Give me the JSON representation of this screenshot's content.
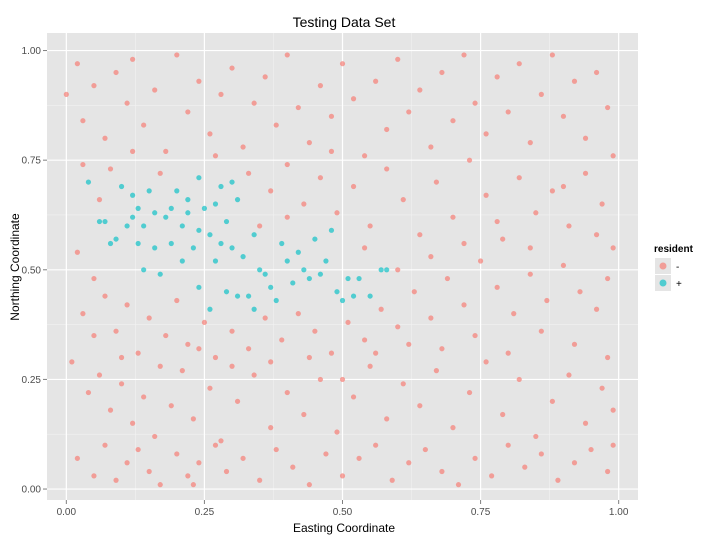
{
  "chart_data": {
    "type": "scatter",
    "title": "Testing Data Set",
    "xlabel": "Easting Coordinate",
    "ylabel": "Northing Coordinate",
    "xlim": [
      -0.035,
      1.035
    ],
    "ylim": [
      -0.025,
      1.04
    ],
    "x_ticks": [
      0.0,
      0.25,
      0.5,
      0.75,
      1.0
    ],
    "x_tick_labels": [
      "0.00",
      "0.25",
      "0.50",
      "0.75",
      "1.00"
    ],
    "y_ticks": [
      0.0,
      0.25,
      0.5,
      0.75,
      1.0
    ],
    "y_tick_labels": [
      "0.00",
      "0.25",
      "0.50",
      "0.75",
      "1.00"
    ],
    "grid": true,
    "legend": {
      "title": "resident",
      "placement": "right",
      "entries": [
        {
          "label": "-",
          "color": "#F8766D"
        },
        {
          "label": "+",
          "color": "#00BFC4"
        }
      ]
    },
    "series": [
      {
        "name": "+",
        "color": "#00BFC4",
        "points": [
          [
            0.04,
            0.7
          ],
          [
            0.07,
            0.61
          ],
          [
            0.09,
            0.57
          ],
          [
            0.1,
            0.69
          ],
          [
            0.11,
            0.6
          ],
          [
            0.12,
            0.67
          ],
          [
            0.13,
            0.64
          ],
          [
            0.14,
            0.6
          ],
          [
            0.15,
            0.68
          ],
          [
            0.13,
            0.56
          ],
          [
            0.16,
            0.55
          ],
          [
            0.18,
            0.62
          ],
          [
            0.19,
            0.56
          ],
          [
            0.2,
            0.68
          ],
          [
            0.21,
            0.6
          ],
          [
            0.22,
            0.66
          ],
          [
            0.23,
            0.55
          ],
          [
            0.24,
            0.71
          ],
          [
            0.25,
            0.64
          ],
          [
            0.26,
            0.58
          ],
          [
            0.27,
            0.52
          ],
          [
            0.28,
            0.69
          ],
          [
            0.29,
            0.61
          ],
          [
            0.3,
            0.55
          ],
          [
            0.31,
            0.66
          ],
          [
            0.32,
            0.53
          ],
          [
            0.33,
            0.44
          ],
          [
            0.34,
            0.58
          ],
          [
            0.36,
            0.49
          ],
          [
            0.37,
            0.46
          ],
          [
            0.38,
            0.43
          ],
          [
            0.39,
            0.56
          ],
          [
            0.4,
            0.52
          ],
          [
            0.41,
            0.47
          ],
          [
            0.42,
            0.54
          ],
          [
            0.43,
            0.5
          ],
          [
            0.45,
            0.57
          ],
          [
            0.46,
            0.49
          ],
          [
            0.47,
            0.52
          ],
          [
            0.48,
            0.59
          ],
          [
            0.49,
            0.45
          ],
          [
            0.5,
            0.43
          ],
          [
            0.51,
            0.48
          ],
          [
            0.53,
            0.48
          ],
          [
            0.55,
            0.44
          ],
          [
            0.57,
            0.5
          ],
          [
            0.58,
            0.5
          ],
          [
            0.14,
            0.5
          ],
          [
            0.17,
            0.49
          ],
          [
            0.24,
            0.46
          ],
          [
            0.26,
            0.41
          ],
          [
            0.29,
            0.45
          ],
          [
            0.31,
            0.44
          ],
          [
            0.34,
            0.41
          ],
          [
            0.22,
            0.63
          ],
          [
            0.19,
            0.64
          ],
          [
            0.27,
            0.65
          ],
          [
            0.3,
            0.7
          ],
          [
            0.08,
            0.56
          ],
          [
            0.12,
            0.62
          ],
          [
            0.06,
            0.61
          ],
          [
            0.16,
            0.63
          ],
          [
            0.21,
            0.52
          ],
          [
            0.24,
            0.59
          ],
          [
            0.28,
            0.56
          ],
          [
            0.35,
            0.5
          ],
          [
            0.44,
            0.48
          ],
          [
            0.52,
            0.44
          ]
        ]
      },
      {
        "name": "-",
        "color": "#F8766D",
        "points": [
          [
            0.0,
            0.9
          ],
          [
            0.02,
            0.97
          ],
          [
            0.03,
            0.84
          ],
          [
            0.05,
            0.92
          ],
          [
            0.07,
            0.8
          ],
          [
            0.09,
            0.95
          ],
          [
            0.11,
            0.88
          ],
          [
            0.12,
            0.98
          ],
          [
            0.14,
            0.83
          ],
          [
            0.16,
            0.91
          ],
          [
            0.18,
            0.77
          ],
          [
            0.2,
            0.99
          ],
          [
            0.22,
            0.86
          ],
          [
            0.24,
            0.93
          ],
          [
            0.26,
            0.81
          ],
          [
            0.28,
            0.9
          ],
          [
            0.3,
            0.96
          ],
          [
            0.32,
            0.78
          ],
          [
            0.34,
            0.88
          ],
          [
            0.36,
            0.94
          ],
          [
            0.38,
            0.83
          ],
          [
            0.4,
            0.99
          ],
          [
            0.42,
            0.87
          ],
          [
            0.44,
            0.79
          ],
          [
            0.46,
            0.92
          ],
          [
            0.48,
            0.85
          ],
          [
            0.5,
            0.97
          ],
          [
            0.52,
            0.89
          ],
          [
            0.54,
            0.76
          ],
          [
            0.56,
            0.93
          ],
          [
            0.58,
            0.82
          ],
          [
            0.6,
            0.98
          ],
          [
            0.62,
            0.86
          ],
          [
            0.64,
            0.91
          ],
          [
            0.66,
            0.78
          ],
          [
            0.68,
            0.95
          ],
          [
            0.7,
            0.84
          ],
          [
            0.72,
            0.99
          ],
          [
            0.74,
            0.88
          ],
          [
            0.76,
            0.81
          ],
          [
            0.78,
            0.94
          ],
          [
            0.8,
            0.86
          ],
          [
            0.82,
            0.97
          ],
          [
            0.84,
            0.79
          ],
          [
            0.86,
            0.9
          ],
          [
            0.88,
            0.99
          ],
          [
            0.9,
            0.85
          ],
          [
            0.92,
            0.93
          ],
          [
            0.94,
            0.8
          ],
          [
            0.96,
            0.95
          ],
          [
            0.98,
            0.87
          ],
          [
            0.99,
            0.76
          ],
          [
            0.03,
            0.74
          ],
          [
            0.06,
            0.66
          ],
          [
            0.08,
            0.73
          ],
          [
            0.33,
            0.72
          ],
          [
            0.37,
            0.68
          ],
          [
            0.4,
            0.74
          ],
          [
            0.43,
            0.65
          ],
          [
            0.46,
            0.71
          ],
          [
            0.49,
            0.63
          ],
          [
            0.52,
            0.69
          ],
          [
            0.55,
            0.6
          ],
          [
            0.58,
            0.73
          ],
          [
            0.61,
            0.66
          ],
          [
            0.64,
            0.58
          ],
          [
            0.67,
            0.7
          ],
          [
            0.7,
            0.62
          ],
          [
            0.73,
            0.75
          ],
          [
            0.76,
            0.67
          ],
          [
            0.79,
            0.57
          ],
          [
            0.82,
            0.71
          ],
          [
            0.85,
            0.63
          ],
          [
            0.88,
            0.68
          ],
          [
            0.91,
            0.6
          ],
          [
            0.94,
            0.72
          ],
          [
            0.97,
            0.65
          ],
          [
            0.99,
            0.55
          ],
          [
            0.02,
            0.54
          ],
          [
            0.05,
            0.48
          ],
          [
            0.03,
            0.4
          ],
          [
            0.07,
            0.44
          ],
          [
            0.09,
            0.36
          ],
          [
            0.11,
            0.42
          ],
          [
            0.13,
            0.31
          ],
          [
            0.15,
            0.39
          ],
          [
            0.18,
            0.35
          ],
          [
            0.2,
            0.43
          ],
          [
            0.22,
            0.33
          ],
          [
            0.25,
            0.38
          ],
          [
            0.27,
            0.3
          ],
          [
            0.3,
            0.36
          ],
          [
            0.33,
            0.32
          ],
          [
            0.36,
            0.39
          ],
          [
            0.39,
            0.34
          ],
          [
            0.42,
            0.4
          ],
          [
            0.45,
            0.36
          ],
          [
            0.48,
            0.31
          ],
          [
            0.51,
            0.38
          ],
          [
            0.54,
            0.34
          ],
          [
            0.57,
            0.41
          ],
          [
            0.6,
            0.37
          ],
          [
            0.63,
            0.45
          ],
          [
            0.66,
            0.39
          ],
          [
            0.69,
            0.48
          ],
          [
            0.72,
            0.42
          ],
          [
            0.75,
            0.52
          ],
          [
            0.78,
            0.46
          ],
          [
            0.81,
            0.4
          ],
          [
            0.84,
            0.49
          ],
          [
            0.87,
            0.43
          ],
          [
            0.9,
            0.51
          ],
          [
            0.93,
            0.45
          ],
          [
            0.96,
            0.41
          ],
          [
            0.98,
            0.48
          ],
          [
            0.01,
            0.29
          ],
          [
            0.04,
            0.22
          ],
          [
            0.06,
            0.26
          ],
          [
            0.08,
            0.18
          ],
          [
            0.1,
            0.24
          ],
          [
            0.12,
            0.15
          ],
          [
            0.14,
            0.21
          ],
          [
            0.16,
            0.12
          ],
          [
            0.19,
            0.19
          ],
          [
            0.21,
            0.27
          ],
          [
            0.23,
            0.16
          ],
          [
            0.26,
            0.23
          ],
          [
            0.28,
            0.11
          ],
          [
            0.31,
            0.2
          ],
          [
            0.34,
            0.26
          ],
          [
            0.37,
            0.14
          ],
          [
            0.4,
            0.22
          ],
          [
            0.43,
            0.17
          ],
          [
            0.46,
            0.25
          ],
          [
            0.49,
            0.13
          ],
          [
            0.52,
            0.21
          ],
          [
            0.55,
            0.28
          ],
          [
            0.58,
            0.16
          ],
          [
            0.61,
            0.24
          ],
          [
            0.64,
            0.19
          ],
          [
            0.67,
            0.27
          ],
          [
            0.7,
            0.14
          ],
          [
            0.73,
            0.22
          ],
          [
            0.76,
            0.29
          ],
          [
            0.79,
            0.17
          ],
          [
            0.82,
            0.25
          ],
          [
            0.85,
            0.12
          ],
          [
            0.88,
            0.2
          ],
          [
            0.91,
            0.26
          ],
          [
            0.94,
            0.15
          ],
          [
            0.97,
            0.23
          ],
          [
            0.99,
            0.18
          ],
          [
            0.02,
            0.07
          ],
          [
            0.05,
            0.03
          ],
          [
            0.07,
            0.1
          ],
          [
            0.09,
            0.02
          ],
          [
            0.11,
            0.06
          ],
          [
            0.13,
            0.09
          ],
          [
            0.15,
            0.04
          ],
          [
            0.17,
            0.01
          ],
          [
            0.2,
            0.08
          ],
          [
            0.22,
            0.03
          ],
          [
            0.23,
            0.01
          ],
          [
            0.24,
            0.06
          ],
          [
            0.27,
            0.1
          ],
          [
            0.29,
            0.04
          ],
          [
            0.32,
            0.07
          ],
          [
            0.35,
            0.02
          ],
          [
            0.38,
            0.09
          ],
          [
            0.41,
            0.05
          ],
          [
            0.44,
            0.01
          ],
          [
            0.47,
            0.08
          ],
          [
            0.5,
            0.03
          ],
          [
            0.53,
            0.07
          ],
          [
            0.56,
            0.1
          ],
          [
            0.59,
            0.02
          ],
          [
            0.62,
            0.06
          ],
          [
            0.65,
            0.09
          ],
          [
            0.68,
            0.04
          ],
          [
            0.71,
            0.01
          ],
          [
            0.74,
            0.07
          ],
          [
            0.77,
            0.03
          ],
          [
            0.8,
            0.1
          ],
          [
            0.83,
            0.05
          ],
          [
            0.86,
            0.08
          ],
          [
            0.89,
            0.02
          ],
          [
            0.92,
            0.06
          ],
          [
            0.95,
            0.09
          ],
          [
            0.98,
            0.04
          ],
          [
            0.99,
            0.1
          ],
          [
            0.12,
            0.77
          ],
          [
            0.17,
            0.72
          ],
          [
            0.27,
            0.76
          ],
          [
            0.35,
            0.6
          ],
          [
            0.4,
            0.62
          ],
          [
            0.48,
            0.77
          ],
          [
            0.54,
            0.55
          ],
          [
            0.6,
            0.5
          ],
          [
            0.66,
            0.53
          ],
          [
            0.72,
            0.56
          ],
          [
            0.78,
            0.61
          ],
          [
            0.84,
            0.55
          ],
          [
            0.9,
            0.69
          ],
          [
            0.96,
            0.58
          ],
          [
            0.05,
            0.35
          ],
          [
            0.1,
            0.3
          ],
          [
            0.17,
            0.28
          ],
          [
            0.24,
            0.32
          ],
          [
            0.3,
            0.28
          ],
          [
            0.37,
            0.29
          ],
          [
            0.44,
            0.3
          ],
          [
            0.5,
            0.25
          ],
          [
            0.56,
            0.31
          ],
          [
            0.62,
            0.33
          ],
          [
            0.68,
            0.32
          ],
          [
            0.74,
            0.35
          ],
          [
            0.8,
            0.31
          ],
          [
            0.86,
            0.36
          ],
          [
            0.92,
            0.33
          ],
          [
            0.98,
            0.3
          ]
        ]
      }
    ]
  }
}
